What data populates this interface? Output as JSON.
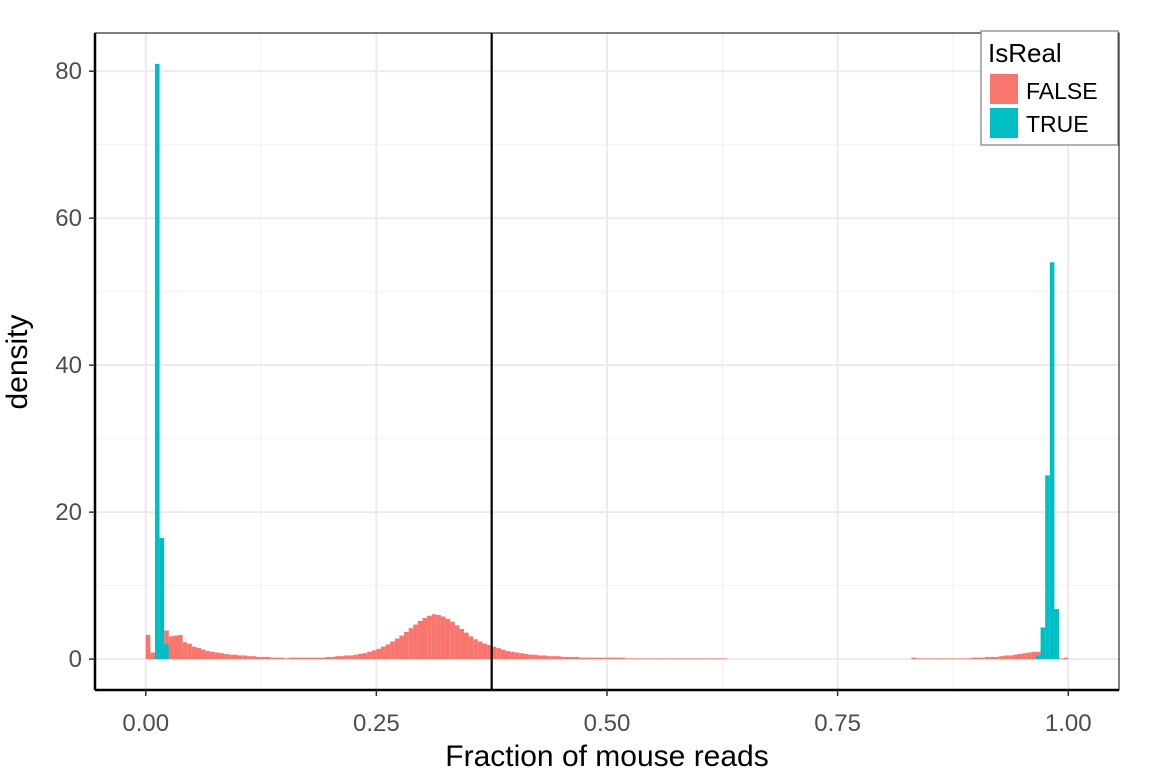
{
  "chart_data": {
    "type": "bar",
    "subtype": "histogram-density",
    "title": "",
    "xlabel": "Fraction of mouse reads",
    "ylabel": "density",
    "xlim": [
      -0.055,
      1.055
    ],
    "ylim": [
      -4.2,
      85.2
    ],
    "x_ticks": [
      0.0,
      0.25,
      0.5,
      0.75,
      1.0
    ],
    "x_tick_labels": [
      "0.00",
      "0.25",
      "0.50",
      "0.75",
      "1.00"
    ],
    "y_ticks": [
      0,
      20,
      40,
      60,
      80
    ],
    "y_tick_labels": [
      "0",
      "20",
      "40",
      "60",
      "80"
    ],
    "grid": true,
    "vline_x": 0.375,
    "bin_width": 0.005,
    "legend": {
      "title": "IsReal",
      "position": "top-right",
      "entries": [
        "FALSE",
        "TRUE"
      ]
    },
    "series": [
      {
        "name": "FALSE",
        "color": "#F8766D",
        "bin_starts": [
          0.0,
          0.005,
          0.01,
          0.015,
          0.02,
          0.025,
          0.03,
          0.035,
          0.04,
          0.045,
          0.05,
          0.055,
          0.06,
          0.065,
          0.07,
          0.075,
          0.08,
          0.085,
          0.09,
          0.095,
          0.1,
          0.105,
          0.11,
          0.115,
          0.12,
          0.125,
          0.13,
          0.135,
          0.14,
          0.145,
          0.15,
          0.155,
          0.16,
          0.165,
          0.17,
          0.175,
          0.18,
          0.185,
          0.19,
          0.195,
          0.2,
          0.205,
          0.21,
          0.215,
          0.22,
          0.225,
          0.23,
          0.235,
          0.24,
          0.245,
          0.25,
          0.255,
          0.26,
          0.265,
          0.27,
          0.275,
          0.28,
          0.285,
          0.29,
          0.295,
          0.3,
          0.305,
          0.31,
          0.315,
          0.32,
          0.325,
          0.33,
          0.335,
          0.34,
          0.345,
          0.35,
          0.355,
          0.36,
          0.365,
          0.37,
          0.375,
          0.38,
          0.385,
          0.39,
          0.395,
          0.4,
          0.405,
          0.41,
          0.415,
          0.42,
          0.425,
          0.43,
          0.435,
          0.44,
          0.445,
          0.45,
          0.455,
          0.46,
          0.465,
          0.47,
          0.475,
          0.48,
          0.485,
          0.49,
          0.495,
          0.5,
          0.505,
          0.51,
          0.515,
          0.52,
          0.525,
          0.53,
          0.535,
          0.54,
          0.545,
          0.55,
          0.555,
          0.56,
          0.565,
          0.57,
          0.575,
          0.58,
          0.585,
          0.59,
          0.595,
          0.6,
          0.605,
          0.61,
          0.615,
          0.62,
          0.625,
          0.83,
          0.835,
          0.84,
          0.845,
          0.85,
          0.855,
          0.86,
          0.865,
          0.87,
          0.875,
          0.88,
          0.885,
          0.89,
          0.895,
          0.9,
          0.905,
          0.91,
          0.915,
          0.92,
          0.925,
          0.93,
          0.935,
          0.94,
          0.945,
          0.95,
          0.955,
          0.96,
          0.965,
          0.97,
          0.975,
          0.98,
          0.985,
          0.99,
          0.995
        ],
        "values": [
          3.3,
          0.9,
          1.3,
          2.0,
          3.9,
          3.1,
          3.2,
          3.3,
          2.3,
          2.1,
          1.7,
          1.5,
          1.3,
          1.1,
          1.0,
          0.9,
          0.8,
          0.7,
          0.6,
          0.6,
          0.5,
          0.5,
          0.4,
          0.4,
          0.3,
          0.3,
          0.3,
          0.2,
          0.2,
          0.2,
          0.1,
          0.2,
          0.2,
          0.2,
          0.2,
          0.2,
          0.2,
          0.2,
          0.2,
          0.3,
          0.3,
          0.4,
          0.4,
          0.5,
          0.5,
          0.6,
          0.7,
          0.8,
          1.0,
          1.2,
          1.4,
          1.7,
          2.0,
          2.4,
          2.8,
          3.2,
          3.7,
          4.2,
          4.7,
          5.2,
          5.6,
          5.9,
          6.1,
          6.0,
          5.8,
          5.5,
          5.1,
          4.6,
          4.1,
          3.6,
          3.1,
          2.7,
          2.4,
          2.1,
          1.9,
          1.7,
          1.5,
          1.3,
          1.1,
          1.0,
          0.9,
          0.8,
          0.7,
          0.6,
          0.6,
          0.5,
          0.5,
          0.4,
          0.4,
          0.4,
          0.3,
          0.3,
          0.3,
          0.3,
          0.2,
          0.2,
          0.2,
          0.2,
          0.2,
          0.2,
          0.2,
          0.2,
          0.2,
          0.2,
          0.1,
          0.1,
          0.1,
          0.1,
          0.1,
          0.1,
          0.1,
          0.1,
          0.1,
          0.1,
          0.1,
          0.1,
          0.1,
          0.1,
          0.1,
          0.1,
          0.1,
          0.1,
          0.1,
          0.1,
          0.1,
          0.1,
          0.2,
          0.1,
          0.1,
          0.1,
          0.1,
          0.1,
          0.1,
          0.1,
          0.1,
          0.1,
          0.1,
          0.1,
          0.1,
          0.2,
          0.2,
          0.2,
          0.3,
          0.3,
          0.3,
          0.4,
          0.5,
          0.5,
          0.6,
          0.7,
          0.8,
          0.9,
          1.0,
          1.0,
          1.0,
          1.0,
          0.6,
          0.2,
          0.1,
          0.2
        ]
      },
      {
        "name": "TRUE",
        "color": "#00BFC4",
        "bin_starts": [
          0.01,
          0.015,
          0.02,
          0.965,
          0.97,
          0.975,
          0.98,
          0.985
        ],
        "values": [
          81.0,
          16.5,
          2.0,
          0.5,
          4.3,
          25.0,
          54.0,
          6.8
        ]
      }
    ]
  }
}
